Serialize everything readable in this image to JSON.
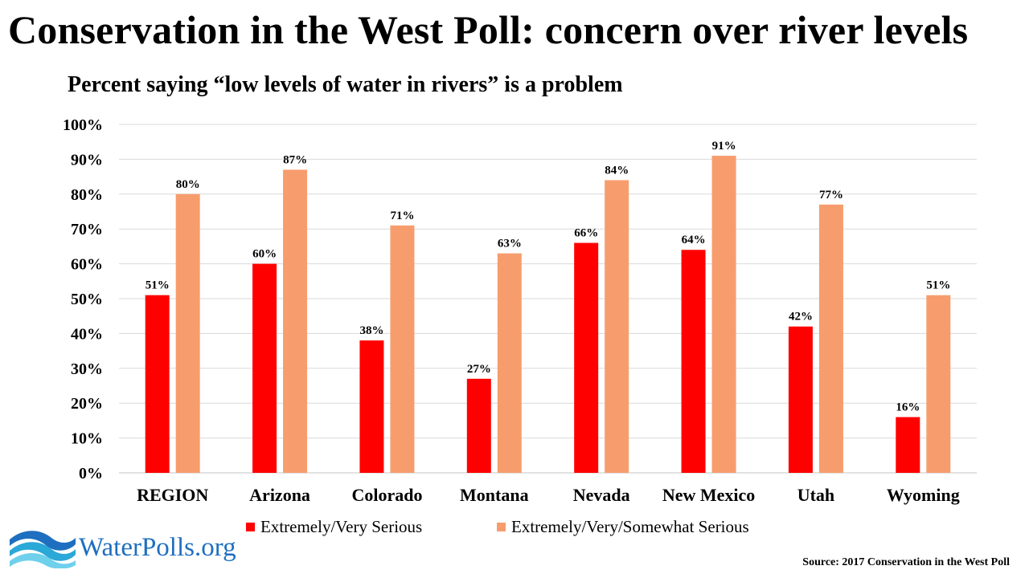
{
  "title": "Conservation in the West Poll: concern over river levels",
  "subtitle": "Percent saying “low levels of water in rivers” is a problem",
  "source": "Source: 2017 Conservation in the West Poll",
  "logo_text": "WaterPolls.org",
  "colors": {
    "series1": "#ff0000",
    "series2": "#f79d6d",
    "grid": "#d9d9d9"
  },
  "chart_data": {
    "type": "bar",
    "categories": [
      "REGION",
      "Arizona",
      "Colorado",
      "Montana",
      "Nevada",
      "New Mexico",
      "Utah",
      "Wyoming"
    ],
    "series": [
      {
        "name": "Extremely/Very Serious",
        "values": [
          51,
          60,
          38,
          27,
          66,
          64,
          42,
          16
        ]
      },
      {
        "name": "Extremely/Very/Somewhat Serious",
        "values": [
          80,
          87,
          71,
          63,
          84,
          91,
          77,
          51
        ]
      }
    ],
    "ylim": [
      0,
      100
    ],
    "yticks": [
      "0%",
      "10%",
      "20%",
      "30%",
      "40%",
      "50%",
      "60%",
      "70%",
      "80%",
      "90%",
      "100%"
    ],
    "value_suffix": "%",
    "grid": true,
    "legend_position": "bottom"
  }
}
